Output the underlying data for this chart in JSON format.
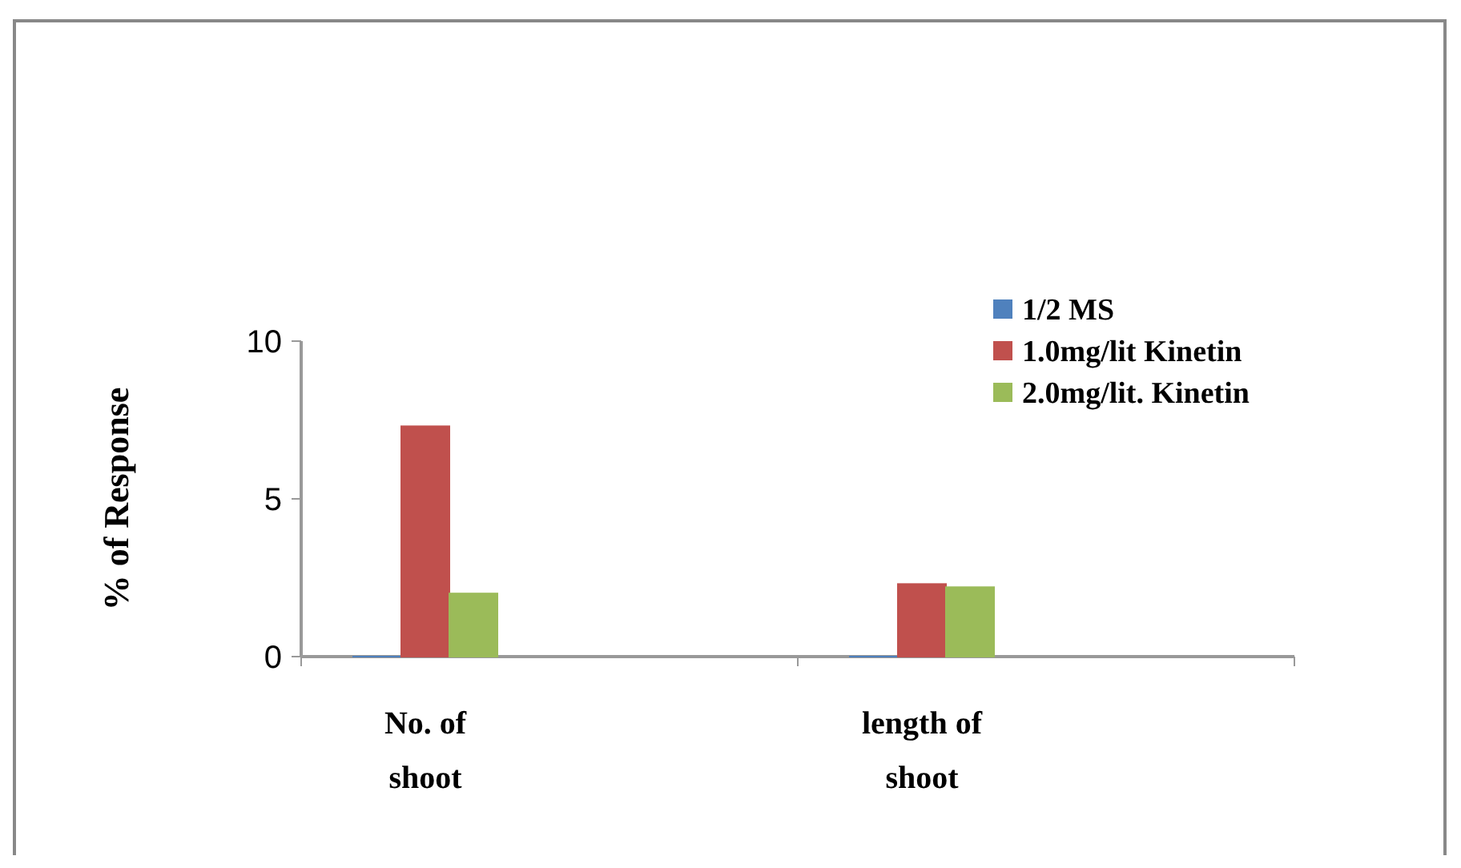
{
  "chart_data": {
    "type": "bar",
    "ylabel": "% of Response",
    "categories": [
      "No. of shoot",
      "length of shoot"
    ],
    "series": [
      {
        "name": "1/2 MS",
        "color": "#4f81bd",
        "values": [
          0,
          0
        ]
      },
      {
        "name": "1.0mg/lit Kinetin",
        "color": "#c0504d",
        "values": [
          7.3,
          2.3
        ]
      },
      {
        "name": "2.0mg/lit. Kinetin",
        "color": "#9bbb59",
        "values": [
          2.0,
          2.2
        ]
      }
    ],
    "ylim": [
      0,
      10
    ],
    "yticks": [
      0,
      5,
      10
    ],
    "grid": false,
    "legend": "top right"
  }
}
